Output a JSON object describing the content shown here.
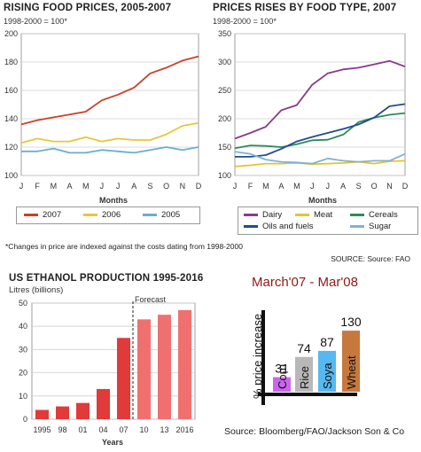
{
  "chart_data": [
    {
      "type": "line",
      "title": "RISING FOOD PRICES, 2005-2007",
      "subtitle": "1998-2000 = 100*",
      "xlabel": "Months",
      "ylabel": "",
      "categories": [
        "J",
        "F",
        "M",
        "A",
        "M",
        "J",
        "J",
        "A",
        "S",
        "O",
        "N",
        "D"
      ],
      "ylim": [
        100,
        200
      ],
      "yticks": [
        100,
        120,
        140,
        160,
        180,
        200
      ],
      "grid": true,
      "legend_position": "bottom",
      "series": [
        {
          "name": "2007",
          "color": "#c9412b",
          "values": [
            136,
            139,
            141,
            143,
            145,
            153,
            157,
            162,
            172,
            176,
            181,
            184
          ]
        },
        {
          "name": "2006",
          "color": "#e9c53a",
          "values": [
            123,
            126,
            124,
            124,
            127,
            124,
            126,
            125,
            125,
            129,
            135,
            137
          ]
        },
        {
          "name": "2005",
          "color": "#6aaed0",
          "values": [
            117,
            117,
            119,
            116,
            116,
            118,
            117,
            116,
            118,
            120,
            118,
            120
          ]
        }
      ]
    },
    {
      "type": "line",
      "title": "PRICES RISES BY FOOD TYPE, 2007",
      "subtitle": "1998-2000 = 100*",
      "xlabel": "Months",
      "ylabel": "",
      "categories": [
        "J",
        "F",
        "M",
        "A",
        "M",
        "J",
        "J",
        "A",
        "S",
        "O",
        "N",
        "D"
      ],
      "ylim": [
        100,
        350
      ],
      "yticks": [
        100,
        150,
        200,
        250,
        300,
        350
      ],
      "grid": true,
      "legend_position": "bottom",
      "series": [
        {
          "name": "Dairy",
          "color": "#8b3a8b",
          "values": [
            165,
            175,
            186,
            215,
            224,
            260,
            280,
            287,
            290,
            296,
            302,
            292
          ]
        },
        {
          "name": "Meat",
          "color": "#e6c230",
          "values": [
            116,
            118,
            121,
            121,
            122,
            120,
            121,
            122,
            124,
            121,
            125,
            126
          ]
        },
        {
          "name": "Cereals",
          "color": "#2e8b57",
          "values": [
            148,
            153,
            152,
            150,
            155,
            162,
            163,
            172,
            194,
            202,
            207,
            210
          ]
        },
        {
          "name": "Oils and fuels",
          "color": "#1f4e8c",
          "values": [
            133,
            133,
            136,
            147,
            160,
            168,
            175,
            182,
            190,
            202,
            222,
            226
          ]
        },
        {
          "name": "Sugar",
          "color": "#7fb3d5",
          "values": [
            142,
            138,
            128,
            124,
            123,
            121,
            130,
            126,
            124,
            126,
            126,
            138
          ]
        }
      ]
    },
    {
      "type": "bar",
      "title": "US ETHANOL PRODUCTION 1995-2016",
      "subtitle": "Litres (billions)",
      "xlabel": "Years",
      "ylabel": "",
      "categories": [
        "1995",
        "98",
        "01",
        "04",
        "07",
        "10",
        "13",
        "2016"
      ],
      "values": [
        4,
        5.5,
        7,
        13,
        35,
        43,
        45,
        47
      ],
      "forecast_from_index": 5,
      "forecast_label": "Forecast",
      "colors": {
        "actual": "#e03a3a",
        "forecast": "#f07070"
      },
      "ylim": [
        0,
        50
      ],
      "yticks": [
        0,
        10,
        20,
        30,
        40,
        50
      ],
      "grid": true
    },
    {
      "type": "bar",
      "title": "March'07 - Mar'08",
      "ylabel": "% price increase",
      "categories": [
        "Corn",
        "Rice",
        "Soya",
        "Wheat"
      ],
      "values": [
        31,
        74,
        87,
        130
      ],
      "colors": [
        "#cc66ee",
        "#b8b8b8",
        "#55b8ee",
        "#c7783d"
      ],
      "source": "Source: Bloomberg/FAO/Jackson Son & Co"
    }
  ],
  "footnote": "*Changes in price are indexed against the costs dating from 1998-2000",
  "source1": "SOURCE: Source: FAO"
}
